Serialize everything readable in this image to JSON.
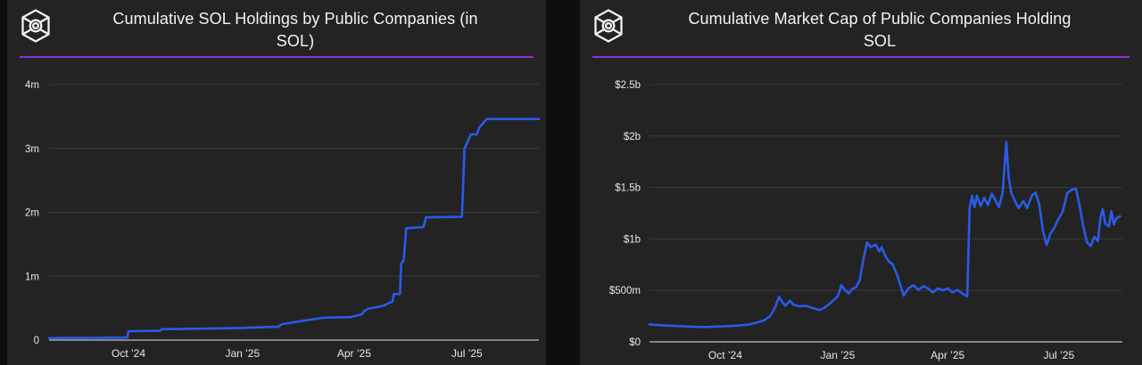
{
  "page": {
    "background": "#0e0e0e",
    "card_background": "#232323",
    "accent_rule_color": "#8f2fd9",
    "line_color": "#2a5ae8",
    "grid_color": "#3a3a3a",
    "zero_axis_color": "#a6a6a6",
    "title_color": "#f3f3f3",
    "tick_label_color": "#e8e8e8",
    "logo": "wireframe-cube-with-sphere"
  },
  "charts": [
    {
      "title": "Cumulative SOL Holdings by Public Companies (in SOL)",
      "chart_data": {
        "type": "line",
        "title": "Cumulative SOL Holdings by Public Companies (in SOL)",
        "value_unit": "SOL",
        "xlabel": "",
        "ylabel": "",
        "grid": true,
        "legend": "none",
        "ylim": [
          0,
          4000000
        ],
        "x_domain": [
          "2024-07-29",
          "2025-08-28"
        ],
        "y_ticks": [
          {
            "label": "4m",
            "v": 4000000
          },
          {
            "label": "3m",
            "v": 3000000
          },
          {
            "label": "2m",
            "v": 2000000
          },
          {
            "label": "1m",
            "v": 1000000
          },
          {
            "label": "0",
            "v": 0
          }
        ],
        "x_ticks": [
          {
            "label": "Oct ’24",
            "d": "2024-10-01"
          },
          {
            "label": "Jan ’25",
            "d": "2025-01-01"
          },
          {
            "label": "Apr ’25",
            "d": "2025-04-01"
          },
          {
            "label": "Jul ’25",
            "d": "2025-07-01"
          }
        ],
        "series": [
          {
            "points": [
              [
                "2024-07-29",
                30000
              ],
              [
                "2024-09-05",
                35000
              ],
              [
                "2024-09-30",
                40000
              ],
              [
                "2024-10-01",
                140000
              ],
              [
                "2024-10-26",
                145000
              ],
              [
                "2024-10-28",
                170000
              ],
              [
                "2024-12-31",
                190000
              ],
              [
                "2025-01-30",
                210000
              ],
              [
                "2025-02-02",
                250000
              ],
              [
                "2025-02-18",
                300000
              ],
              [
                "2025-03-07",
                350000
              ],
              [
                "2025-03-29",
                360000
              ],
              [
                "2025-04-07",
                400000
              ],
              [
                "2025-04-09",
                450000
              ],
              [
                "2025-04-12",
                490000
              ],
              [
                "2025-04-18",
                510000
              ],
              [
                "2025-04-25",
                540000
              ],
              [
                "2025-04-29",
                580000
              ],
              [
                "2025-05-02",
                600000
              ],
              [
                "2025-05-03",
                720000
              ],
              [
                "2025-05-08",
                720000
              ],
              [
                "2025-05-09",
                1200000
              ],
              [
                "2025-05-11",
                1250000
              ],
              [
                "2025-05-13",
                1750000
              ],
              [
                "2025-05-27",
                1770000
              ],
              [
                "2025-05-29",
                1920000
              ],
              [
                "2025-06-27",
                1930000
              ],
              [
                "2025-06-29",
                3000000
              ],
              [
                "2025-07-01",
                3080000
              ],
              [
                "2025-07-04",
                3220000
              ],
              [
                "2025-07-09",
                3220000
              ],
              [
                "2025-07-11",
                3330000
              ],
              [
                "2025-07-17",
                3460000
              ],
              [
                "2025-08-28",
                3460000
              ]
            ]
          }
        ]
      }
    },
    {
      "title": "Cumulative Market Cap of Public Companies Holding SOL",
      "chart_data": {
        "type": "line",
        "title": "Cumulative Market Cap of Public Companies Holding SOL",
        "value_unit": "USD millions",
        "xlabel": "",
        "ylabel": "",
        "grid": true,
        "legend": "none",
        "ylim": [
          0,
          2500
        ],
        "x_domain": [
          "2024-07-31",
          "2025-08-22"
        ],
        "y_ticks": [
          {
            "label": "$2.5b",
            "v": 2500
          },
          {
            "label": "$2b",
            "v": 2000
          },
          {
            "label": "$1.5b",
            "v": 1500
          },
          {
            "label": "$1b",
            "v": 1000
          },
          {
            "label": "$500m",
            "v": 500
          },
          {
            "label": "$0",
            "v": 0
          }
        ],
        "x_ticks": [
          {
            "label": "Oct ’24",
            "d": "2024-10-01"
          },
          {
            "label": "Jan ’25",
            "d": "2025-01-01"
          },
          {
            "label": "Apr ’25",
            "d": "2025-04-01"
          },
          {
            "label": "Jul ’25",
            "d": "2025-07-01"
          }
        ],
        "series": [
          {
            "points": [
              [
                "2024-07-31",
                170
              ],
              [
                "2024-08-08",
                162
              ],
              [
                "2024-08-20",
                155
              ],
              [
                "2024-09-03",
                148
              ],
              [
                "2024-09-12",
                143
              ],
              [
                "2024-09-22",
                148
              ],
              [
                "2024-10-02",
                152
              ],
              [
                "2024-10-12",
                158
              ],
              [
                "2024-10-20",
                168
              ],
              [
                "2024-10-27",
                188
              ],
              [
                "2024-11-02",
                210
              ],
              [
                "2024-11-07",
                255
              ],
              [
                "2024-11-11",
                340
              ],
              [
                "2024-11-14",
                440
              ],
              [
                "2024-11-16",
                400
              ],
              [
                "2024-11-19",
                350
              ],
              [
                "2024-11-23",
                400
              ],
              [
                "2024-11-26",
                360
              ],
              [
                "2024-12-01",
                345
              ],
              [
                "2024-12-06",
                350
              ],
              [
                "2024-12-11",
                330
              ],
              [
                "2024-12-17",
                310
              ],
              [
                "2024-12-21",
                330
              ],
              [
                "2024-12-26",
                375
              ],
              [
                "2025-01-01",
                440
              ],
              [
                "2025-01-04",
                550
              ],
              [
                "2025-01-07",
                505
              ],
              [
                "2025-01-10",
                470
              ],
              [
                "2025-01-13",
                515
              ],
              [
                "2025-01-16",
                530
              ],
              [
                "2025-01-19",
                600
              ],
              [
                "2025-01-22",
                800
              ],
              [
                "2025-01-25",
                965
              ],
              [
                "2025-01-28",
                920
              ],
              [
                "2025-02-01",
                945
              ],
              [
                "2025-02-04",
                880
              ],
              [
                "2025-02-06",
                920
              ],
              [
                "2025-02-09",
                835
              ],
              [
                "2025-02-12",
                780
              ],
              [
                "2025-02-15",
                755
              ],
              [
                "2025-02-19",
                640
              ],
              [
                "2025-02-24",
                450
              ],
              [
                "2025-02-28",
                520
              ],
              [
                "2025-03-04",
                550
              ],
              [
                "2025-03-08",
                505
              ],
              [
                "2025-03-12",
                540
              ],
              [
                "2025-03-16",
                520
              ],
              [
                "2025-03-20",
                480
              ],
              [
                "2025-03-24",
                520
              ],
              [
                "2025-03-28",
                500
              ],
              [
                "2025-04-01",
                520
              ],
              [
                "2025-04-05",
                480
              ],
              [
                "2025-04-09",
                505
              ],
              [
                "2025-04-13",
                470
              ],
              [
                "2025-04-17",
                440
              ],
              [
                "2025-04-19",
                1300
              ],
              [
                "2025-04-21",
                1420
              ],
              [
                "2025-04-23",
                1310
              ],
              [
                "2025-04-25",
                1420
              ],
              [
                "2025-04-28",
                1320
              ],
              [
                "2025-05-01",
                1400
              ],
              [
                "2025-05-04",
                1330
              ],
              [
                "2025-05-07",
                1440
              ],
              [
                "2025-05-10",
                1380
              ],
              [
                "2025-05-13",
                1310
              ],
              [
                "2025-05-16",
                1450
              ],
              [
                "2025-05-19",
                1940
              ],
              [
                "2025-05-21",
                1600
              ],
              [
                "2025-05-23",
                1450
              ],
              [
                "2025-05-26",
                1370
              ],
              [
                "2025-05-29",
                1300
              ],
              [
                "2025-06-02",
                1370
              ],
              [
                "2025-06-05",
                1300
              ],
              [
                "2025-06-09",
                1420
              ],
              [
                "2025-06-12",
                1450
              ],
              [
                "2025-06-15",
                1330
              ],
              [
                "2025-06-18",
                1080
              ],
              [
                "2025-06-21",
                940
              ],
              [
                "2025-06-24",
                1050
              ],
              [
                "2025-06-27",
                1100
              ],
              [
                "2025-06-30",
                1180
              ],
              [
                "2025-07-04",
                1260
              ],
              [
                "2025-07-08",
                1450
              ],
              [
                "2025-07-12",
                1480
              ],
              [
                "2025-07-15",
                1490
              ],
              [
                "2025-07-18",
                1320
              ],
              [
                "2025-07-21",
                1120
              ],
              [
                "2025-07-24",
                970
              ],
              [
                "2025-07-27",
                930
              ],
              [
                "2025-07-30",
                1020
              ],
              [
                "2025-08-02",
                980
              ],
              [
                "2025-08-04",
                1200
              ],
              [
                "2025-08-06",
                1290
              ],
              [
                "2025-08-08",
                1150
              ],
              [
                "2025-08-11",
                1120
              ],
              [
                "2025-08-13",
                1270
              ],
              [
                "2025-08-15",
                1140
              ],
              [
                "2025-08-17",
                1200
              ],
              [
                "2025-08-20",
                1220
              ]
            ]
          }
        ]
      }
    }
  ]
}
